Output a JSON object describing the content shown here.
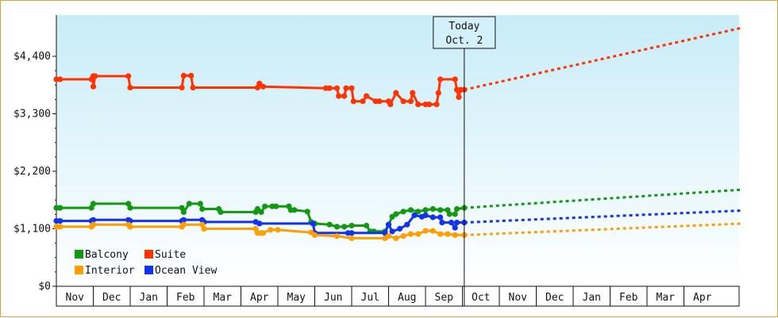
{
  "chart_data": {
    "type": "line",
    "title": "",
    "xlabel": "",
    "ylabel": "",
    "y_ticks": [
      "$0",
      "$1,100",
      "$2,200",
      "$3,300",
      "$4,400"
    ],
    "y_tick_values": [
      0,
      1100,
      2200,
      3300,
      4400
    ],
    "ylim": [
      0,
      4400
    ],
    "x_categories": [
      "Nov",
      "Dec",
      "Jan",
      "Feb",
      "Mar",
      "Apr",
      "May",
      "Jun",
      "Jul",
      "Aug",
      "Sep",
      "Oct",
      "Nov",
      "Dec",
      "Jan",
      "Feb",
      "Mar",
      "Apr"
    ],
    "xlim_months": [
      0,
      18
    ],
    "today": {
      "label": "Today",
      "date": "Oct. 2",
      "x": 11.05
    },
    "background_gradient": [
      "#c8ecf8",
      "#ffffff"
    ],
    "legend_position": "bottom-left",
    "series": [
      {
        "name": "Suite",
        "color": "#ff3300",
        "values": [
          [
            0.0,
            3960
          ],
          [
            0.1,
            3960
          ],
          [
            0.95,
            3960
          ],
          [
            1.0,
            4020
          ],
          [
            1.0,
            3820
          ],
          [
            1.05,
            4020
          ],
          [
            1.95,
            4020
          ],
          [
            2.0,
            3800
          ],
          [
            3.4,
            3800
          ],
          [
            3.45,
            4030
          ],
          [
            3.65,
            4030
          ],
          [
            3.7,
            3800
          ],
          [
            5.45,
            3800
          ],
          [
            5.5,
            3880
          ],
          [
            5.6,
            3820
          ],
          [
            7.3,
            3790
          ],
          [
            7.4,
            3790
          ],
          [
            7.6,
            3790
          ],
          [
            7.65,
            3640
          ],
          [
            7.8,
            3640
          ],
          [
            7.85,
            3790
          ],
          [
            8.0,
            3790
          ],
          [
            8.05,
            3540
          ],
          [
            8.3,
            3540
          ],
          [
            8.4,
            3640
          ],
          [
            8.65,
            3540
          ],
          [
            8.75,
            3540
          ],
          [
            9.0,
            3540
          ],
          [
            9.05,
            3480
          ],
          [
            9.2,
            3700
          ],
          [
            9.4,
            3540
          ],
          [
            9.6,
            3540
          ],
          [
            9.65,
            3700
          ],
          [
            9.8,
            3480
          ],
          [
            10.0,
            3480
          ],
          [
            10.1,
            3480
          ],
          [
            10.3,
            3480
          ],
          [
            10.35,
            3700
          ],
          [
            10.4,
            3960
          ],
          [
            10.8,
            3960
          ],
          [
            10.85,
            3760
          ],
          [
            10.9,
            3620
          ],
          [
            10.95,
            3760
          ],
          [
            11.05,
            3760
          ]
        ],
        "forecast": [
          [
            11.05,
            3760
          ],
          [
            18.6,
            4950
          ]
        ]
      },
      {
        "name": "Balcony",
        "color": "#119911",
        "values": [
          [
            0.0,
            1500
          ],
          [
            0.1,
            1500
          ],
          [
            0.95,
            1500
          ],
          [
            1.0,
            1580
          ],
          [
            1.95,
            1580
          ],
          [
            2.0,
            1500
          ],
          [
            3.4,
            1500
          ],
          [
            3.45,
            1420
          ],
          [
            3.6,
            1580
          ],
          [
            3.9,
            1580
          ],
          [
            3.95,
            1480
          ],
          [
            4.4,
            1480
          ],
          [
            4.45,
            1420
          ],
          [
            5.4,
            1420
          ],
          [
            5.45,
            1480
          ],
          [
            5.55,
            1420
          ],
          [
            5.65,
            1530
          ],
          [
            5.85,
            1530
          ],
          [
            5.95,
            1530
          ],
          [
            6.3,
            1530
          ],
          [
            6.35,
            1460
          ],
          [
            6.45,
            1460
          ],
          [
            6.8,
            1430
          ],
          [
            6.9,
            1230
          ],
          [
            7.0,
            1200
          ],
          [
            7.4,
            1180
          ],
          [
            7.6,
            1140
          ],
          [
            7.8,
            1140
          ],
          [
            8.0,
            1160
          ],
          [
            8.4,
            1160
          ],
          [
            8.5,
            1050
          ],
          [
            8.6,
            1050
          ],
          [
            8.9,
            1050
          ],
          [
            9.0,
            1180
          ],
          [
            9.1,
            1330
          ],
          [
            9.2,
            1380
          ],
          [
            9.4,
            1430
          ],
          [
            9.6,
            1460
          ],
          [
            9.8,
            1430
          ],
          [
            10.0,
            1460
          ],
          [
            10.2,
            1480
          ],
          [
            10.4,
            1460
          ],
          [
            10.6,
            1460
          ],
          [
            10.65,
            1380
          ],
          [
            10.8,
            1380
          ],
          [
            10.85,
            1480
          ],
          [
            11.05,
            1500
          ]
        ],
        "forecast": [
          [
            11.05,
            1500
          ],
          [
            18.6,
            1850
          ]
        ]
      },
      {
        "name": "Ocean View",
        "color": "#1133ee",
        "values": [
          [
            0.0,
            1250
          ],
          [
            0.1,
            1250
          ],
          [
            0.95,
            1250
          ],
          [
            1.0,
            1270
          ],
          [
            1.95,
            1270
          ],
          [
            2.0,
            1250
          ],
          [
            3.4,
            1250
          ],
          [
            3.45,
            1270
          ],
          [
            3.95,
            1270
          ],
          [
            4.0,
            1230
          ],
          [
            5.4,
            1230
          ],
          [
            5.5,
            1200
          ],
          [
            6.95,
            1200
          ],
          [
            7.0,
            1020
          ],
          [
            7.9,
            1020
          ],
          [
            8.0,
            1020
          ],
          [
            8.9,
            1020
          ],
          [
            9.0,
            1180
          ],
          [
            9.1,
            1050
          ],
          [
            9.3,
            1100
          ],
          [
            9.5,
            1180
          ],
          [
            9.7,
            1360
          ],
          [
            9.9,
            1330
          ],
          [
            10.0,
            1360
          ],
          [
            10.2,
            1320
          ],
          [
            10.4,
            1320
          ],
          [
            10.45,
            1220
          ],
          [
            10.7,
            1220
          ],
          [
            10.8,
            1120
          ],
          [
            10.85,
            1220
          ],
          [
            11.05,
            1220
          ]
        ],
        "forecast": [
          [
            11.05,
            1220
          ],
          [
            18.6,
            1450
          ]
        ]
      },
      {
        "name": "Interior",
        "color": "#ff9e00",
        "values": [
          [
            0.0,
            1140
          ],
          [
            0.1,
            1140
          ],
          [
            0.95,
            1140
          ],
          [
            1.0,
            1180
          ],
          [
            1.95,
            1180
          ],
          [
            2.0,
            1140
          ],
          [
            3.4,
            1140
          ],
          [
            3.45,
            1180
          ],
          [
            3.95,
            1180
          ],
          [
            4.0,
            1100
          ],
          [
            5.4,
            1100
          ],
          [
            5.45,
            1020
          ],
          [
            5.55,
            1020
          ],
          [
            5.6,
            1020
          ],
          [
            5.8,
            1080
          ],
          [
            6.0,
            1080
          ],
          [
            6.9,
            1030
          ],
          [
            7.0,
            980
          ],
          [
            7.6,
            960
          ],
          [
            8.0,
            920
          ],
          [
            8.9,
            920
          ],
          [
            9.0,
            960
          ],
          [
            9.2,
            920
          ],
          [
            9.4,
            960
          ],
          [
            9.6,
            1000
          ],
          [
            9.8,
            1000
          ],
          [
            10.0,
            1060
          ],
          [
            10.2,
            1060
          ],
          [
            10.4,
            1000
          ],
          [
            10.6,
            1000
          ],
          [
            10.8,
            980
          ],
          [
            11.05,
            980
          ]
        ],
        "forecast": [
          [
            11.05,
            980
          ],
          [
            18.6,
            1200
          ]
        ]
      }
    ],
    "legend": [
      {
        "name": "Balcony",
        "color": "#119911"
      },
      {
        "name": "Suite",
        "color": "#ff3300"
      },
      {
        "name": "Interior",
        "color": "#ff9e00"
      },
      {
        "name": "Ocean View",
        "color": "#1133ee"
      }
    ]
  }
}
